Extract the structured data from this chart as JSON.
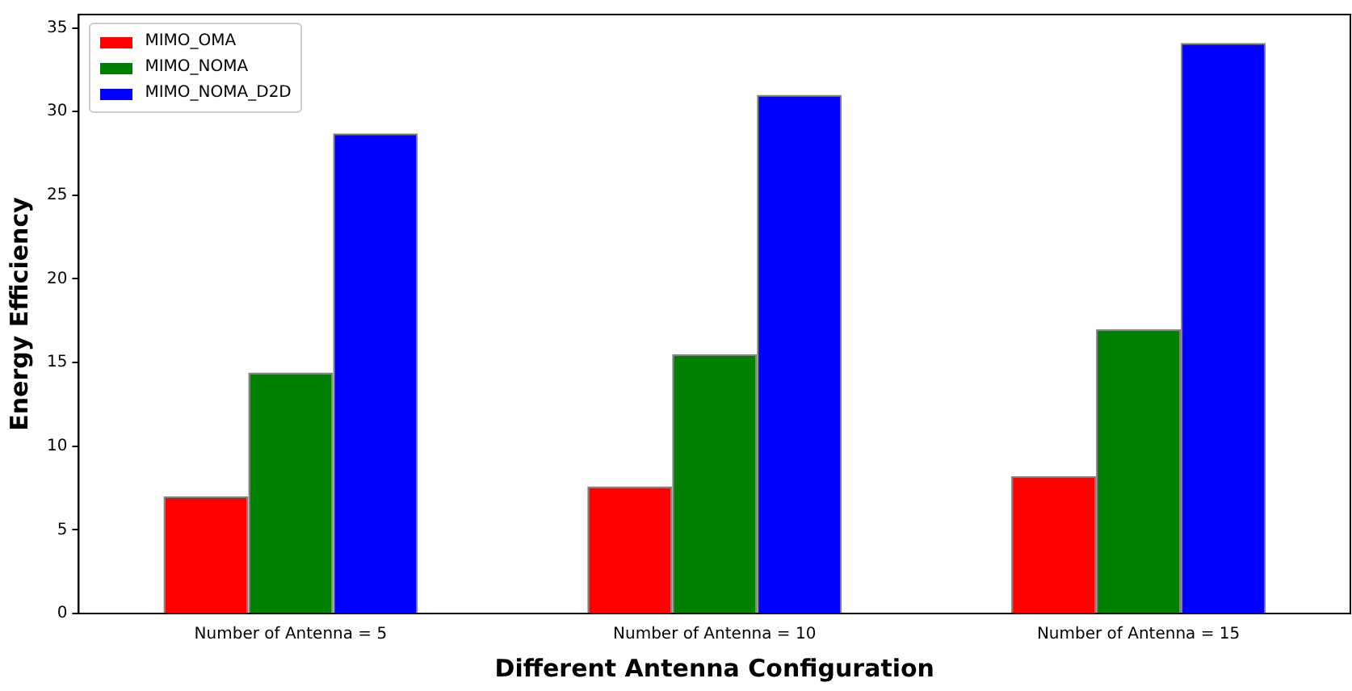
{
  "chart_data": {
    "type": "bar",
    "xlabel": "Different Antenna Configuration",
    "ylabel": "Energy Efficiency",
    "categories": [
      "Number of Antenna = 5",
      "Number of Antenna = 10",
      "Number of Antenna = 15"
    ],
    "series": [
      {
        "name": "MIMO_OMA",
        "color": "#ff0000",
        "values": [
          7.0,
          7.6,
          8.2
        ]
      },
      {
        "name": "MIMO_NOMA",
        "color": "#008000",
        "values": [
          14.4,
          15.5,
          17.0
        ]
      },
      {
        "name": "MIMO_NOMA_D2D",
        "color": "#0000ff",
        "values": [
          28.7,
          31.0,
          34.1
        ]
      }
    ],
    "ylim": [
      0,
      35.8
    ],
    "yticks": [
      0,
      5,
      10,
      15,
      20,
      25,
      30,
      35
    ],
    "grid": false,
    "legend": "top left"
  }
}
